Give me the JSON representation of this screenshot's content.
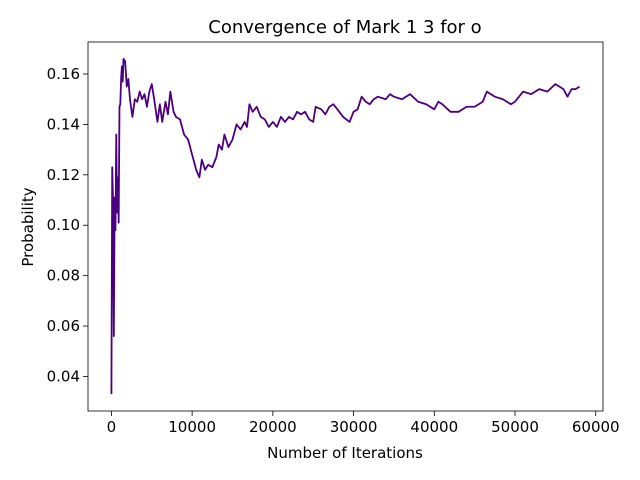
{
  "chart_data": {
    "type": "line",
    "title": "Convergence of Mark 1 3 for o",
    "x_label": "Number of Iterations",
    "y_label": "Probability",
    "xlim": [
      -2900,
      60900
    ],
    "ylim": [
      0.0263,
      0.1727
    ],
    "xticks": [
      0,
      10000,
      20000,
      30000,
      40000,
      50000,
      60000
    ],
    "yticks": [
      0.04,
      0.06,
      0.08,
      {
        "value": 0.1,
        "label": "0.10"
      },
      0.12,
      0.14,
      0.16
    ],
    "grid": false,
    "series": [
      {
        "name": "Probability",
        "color": "#4b0082",
        "x": [
          0,
          100,
          200,
          300,
          400,
          500,
          600,
          700,
          800,
          900,
          1000,
          1100,
          1200,
          1300,
          1400,
          1500,
          1700,
          1900,
          2100,
          2300,
          2600,
          2900,
          3200,
          3500,
          3800,
          4100,
          4400,
          4700,
          5000,
          5300,
          5700,
          6000,
          6300,
          6700,
          7000,
          7300,
          7700,
          8000,
          8500,
          9000,
          9500,
          10000,
          10500,
          10900,
          11200,
          11600,
          12000,
          12500,
          13000,
          13300,
          13700,
          14000,
          14500,
          15000,
          15500,
          16000,
          16500,
          16800,
          17100,
          17500,
          18000,
          18500,
          19000,
          19500,
          20000,
          20500,
          21000,
          21500,
          22000,
          22500,
          23000,
          23500,
          24000,
          24500,
          25000,
          25300,
          26000,
          26500,
          27000,
          27500,
          28000,
          28700,
          29500,
          30000,
          30500,
          31000,
          31500,
          32000,
          32500,
          33000,
          34000,
          34500,
          35000,
          36000,
          37000,
          38000,
          39000,
          40000,
          40500,
          41000,
          42000,
          43000,
          44000,
          45000,
          46000,
          46500,
          47500,
          48500,
          49500,
          50000,
          51000,
          52000,
          53000,
          54000,
          55000,
          56000,
          56500,
          57000,
          57500,
          58000
        ],
        "values": [
          0.033,
          0.123,
          0.11,
          0.056,
          0.111,
          0.098,
          0.136,
          0.105,
          0.119,
          0.101,
          0.147,
          0.148,
          0.158,
          0.163,
          0.157,
          0.166,
          0.165,
          0.155,
          0.158,
          0.15,
          0.143,
          0.15,
          0.149,
          0.153,
          0.15,
          0.152,
          0.147,
          0.153,
          0.156,
          0.15,
          0.141,
          0.148,
          0.141,
          0.149,
          0.144,
          0.153,
          0.145,
          0.143,
          0.142,
          0.136,
          0.134,
          0.128,
          0.122,
          0.119,
          0.126,
          0.122,
          0.124,
          0.123,
          0.127,
          0.132,
          0.13,
          0.136,
          0.131,
          0.134,
          0.14,
          0.138,
          0.141,
          0.139,
          0.148,
          0.145,
          0.147,
          0.143,
          0.142,
          0.139,
          0.141,
          0.139,
          0.143,
          0.141,
          0.143,
          0.142,
          0.145,
          0.144,
          0.145,
          0.142,
          0.141,
          0.147,
          0.146,
          0.144,
          0.147,
          0.148,
          0.146,
          0.143,
          0.141,
          0.145,
          0.146,
          0.151,
          0.149,
          0.148,
          0.15,
          0.151,
          0.15,
          0.152,
          0.151,
          0.15,
          0.152,
          0.149,
          0.148,
          0.146,
          0.149,
          0.148,
          0.145,
          0.145,
          0.147,
          0.147,
          0.149,
          0.153,
          0.151,
          0.15,
          0.148,
          0.149,
          0.153,
          0.152,
          0.154,
          0.153,
          0.156,
          0.154,
          0.151,
          0.154,
          0.154,
          0.155
        ]
      }
    ]
  }
}
